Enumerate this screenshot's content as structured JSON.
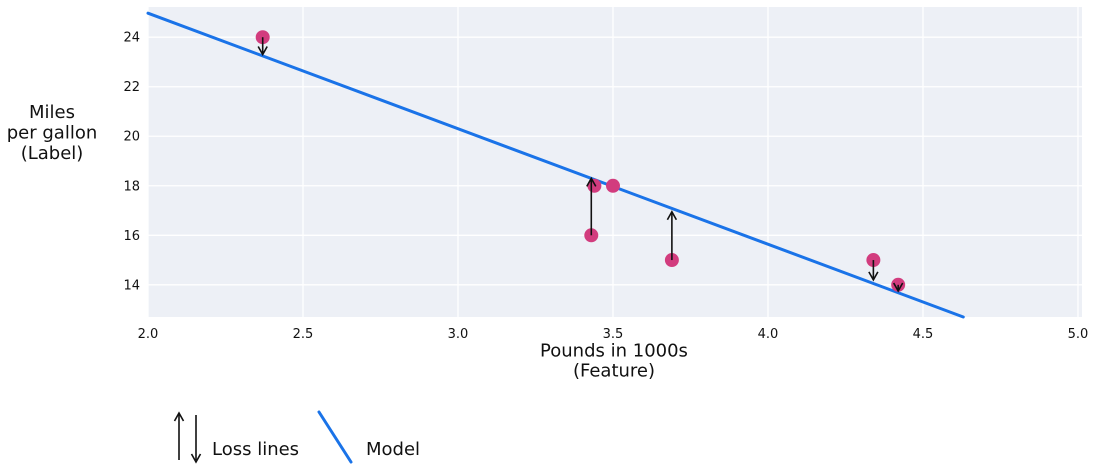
{
  "figure": {
    "legend": {
      "loss_label": "Loss lines",
      "model_label": "Model"
    }
  },
  "chart_data": {
    "type": "scatter",
    "title": "",
    "xlabel": "Pounds in 1000s (Feature)",
    "xlabel_lines": [
      "Pounds in 1000s",
      "(Feature)"
    ],
    "ylabel": "Miles per gallon (Label)",
    "ylabel_lines": [
      "Miles",
      "per gallon",
      "(Label)"
    ],
    "xlim": [
      2.0,
      5.013
    ],
    "ylim": [
      12.7,
      25.22
    ],
    "grid": true,
    "legend_position": "below-left",
    "x_ticks": [
      {
        "value": 2.0,
        "label": "2.0"
      },
      {
        "value": 2.5,
        "label": "2.5"
      },
      {
        "value": 3.0,
        "label": "3.0"
      },
      {
        "value": 3.5,
        "label": "3.5"
      },
      {
        "value": 4.0,
        "label": "4.0"
      },
      {
        "value": 4.5,
        "label": "4.5"
      },
      {
        "value": 5.0,
        "label": "5.0"
      }
    ],
    "y_ticks": [
      {
        "value": 14,
        "label": "14"
      },
      {
        "value": 16,
        "label": "16"
      },
      {
        "value": 18,
        "label": "18"
      },
      {
        "value": 20,
        "label": "20"
      },
      {
        "value": 22,
        "label": "22"
      },
      {
        "value": 24,
        "label": "24"
      }
    ],
    "points": [
      {
        "x": 2.37,
        "y": 24
      },
      {
        "x": 3.44,
        "y": 18
      },
      {
        "x": 3.5,
        "y": 18
      },
      {
        "x": 3.43,
        "y": 16
      },
      {
        "x": 3.69,
        "y": 15
      },
      {
        "x": 4.34,
        "y": 15
      },
      {
        "x": 4.42,
        "y": 14
      }
    ],
    "model_line": {
      "x1": 2.0,
      "y1": 24.97,
      "x2": 4.63,
      "y2": 12.7
    },
    "loss_lines": [
      {
        "x": 2.37,
        "from_y": 24,
        "to_y": 23.3,
        "direction": "down"
      },
      {
        "x": 3.43,
        "from_y": 16,
        "to_y": 18.3,
        "direction": "up"
      },
      {
        "x": 3.69,
        "from_y": 15,
        "to_y": 16.95,
        "direction": "up"
      },
      {
        "x": 4.34,
        "from_y": 15,
        "to_y": 14.2,
        "direction": "down"
      },
      {
        "x": 4.42,
        "from_y": 14,
        "to_y": 13.75,
        "direction": "down"
      }
    ],
    "colors": {
      "point": "#d23c7e",
      "model_line": "#1a73e8",
      "plot_bg": "#edf0f6",
      "grid": "#ffffff",
      "loss_arrow": "#111111",
      "text": "#111111"
    }
  }
}
